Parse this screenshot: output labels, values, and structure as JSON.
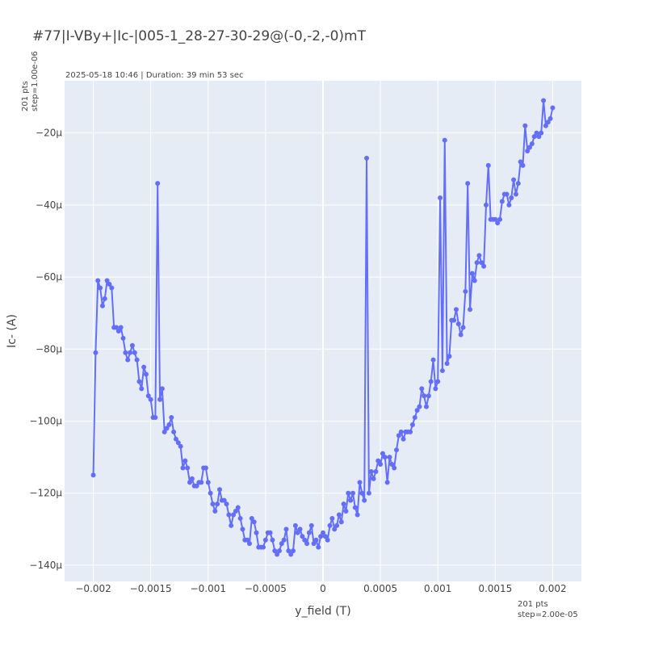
{
  "title": "#77|I-VBy+|Ic-|005-1_28-27-30-29@(-0,-2,-0)mT",
  "subtitle": "2025-05-18 10:46 | Duration: 39 min 53 sec",
  "y_note": [
    "201 pts",
    "step=1.00e-06"
  ],
  "x_note": [
    "201 pts",
    "step=2.00e-05"
  ],
  "colors": {
    "line": "#636efa",
    "plot_bg": "#e5ecf6",
    "grid": "#ffffff",
    "text": "#444444"
  },
  "chart_data": {
    "type": "line",
    "xlabel": "y_field (T)",
    "ylabel": "Ic- (A)",
    "xlim": [
      -0.00225,
      0.00225
    ],
    "ylim": [
      -0.0001445,
      -5.5e-06
    ],
    "x_ticks": [
      -0.002,
      -0.0015,
      -0.001,
      -0.0005,
      0,
      0.0005,
      0.001,
      0.0015,
      0.002
    ],
    "x_tick_labels": [
      "−0.002",
      "−0.0015",
      "−0.001",
      "−0.0005",
      "0",
      "0.0005",
      "0.001",
      "0.0015",
      "0.002"
    ],
    "y_ticks": [
      -0.00014,
      -0.00012,
      -0.0001,
      -8e-05,
      -6e-05,
      -4e-05,
      -2e-05
    ],
    "y_tick_labels": [
      "−140μ",
      "−120μ",
      "−100μ",
      "−80μ",
      "−60μ",
      "−40μ",
      "−20μ"
    ],
    "grid": true,
    "series": [
      {
        "x_start": -0.002,
        "x_step": 2e-05,
        "values": [
          -0.000115,
          -8.1e-05,
          -6.1e-05,
          -6.3e-05,
          -6.8e-05,
          -6.6e-05,
          -6.1e-05,
          -6.2e-05,
          -6.3e-05,
          -7.4e-05,
          -7.4e-05,
          -7.5e-05,
          -7.4e-05,
          -7.7e-05,
          -8.1e-05,
          -8.3e-05,
          -8.1e-05,
          -7.9e-05,
          -8.1e-05,
          -8.3e-05,
          -8.9e-05,
          -9.1e-05,
          -8.5e-05,
          -8.7e-05,
          -9.3e-05,
          -9.4e-05,
          -9.9e-05,
          -9.9e-05,
          -3.4e-05,
          -9.4e-05,
          -9.1e-05,
          -0.000103,
          -0.000102,
          -0.000101,
          -9.9e-05,
          -0.000103,
          -0.000105,
          -0.000106,
          -0.000107,
          -0.000113,
          -0.000111,
          -0.000113,
          -0.000117,
          -0.000116,
          -0.000118,
          -0.000118,
          -0.000117,
          -0.000117,
          -0.000113,
          -0.000113,
          -0.000117,
          -0.00012,
          -0.000123,
          -0.000125,
          -0.000123,
          -0.000119,
          -0.000122,
          -0.000122,
          -0.000123,
          -0.000126,
          -0.000129,
          -0.000126,
          -0.000125,
          -0.000124,
          -0.000127,
          -0.00013,
          -0.000133,
          -0.000133,
          -0.000134,
          -0.000127,
          -0.000128,
          -0.000131,
          -0.000135,
          -0.000135,
          -0.000135,
          -0.000133,
          -0.000131,
          -0.000131,
          -0.000133,
          -0.000136,
          -0.000137,
          -0.000136,
          -0.000134,
          -0.000133,
          -0.00013,
          -0.000136,
          -0.000137,
          -0.000136,
          -0.000129,
          -0.000131,
          -0.00013,
          -0.000132,
          -0.000133,
          -0.000134,
          -0.000131,
          -0.000129,
          -0.000134,
          -0.000133,
          -0.000135,
          -0.000132,
          -0.000131,
          -0.000132,
          -0.000133,
          -0.000129,
          -0.000127,
          -0.00013,
          -0.000129,
          -0.000126,
          -0.000128,
          -0.000123,
          -0.000125,
          -0.00012,
          -0.000122,
          -0.00012,
          -0.000124,
          -0.000126,
          -0.000117,
          -0.00012,
          -0.000122,
          -2.7e-05,
          -0.00012,
          -0.000114,
          -0.000116,
          -0.000114,
          -0.000111,
          -0.000112,
          -0.000109,
          -0.00011,
          -0.000117,
          -0.00011,
          -0.000112,
          -0.000113,
          -0.000108,
          -0.000104,
          -0.000103,
          -0.000105,
          -0.000103,
          -0.000103,
          -0.000103,
          -0.000101,
          -9.9e-05,
          -9.7e-05,
          -9.6e-05,
          -9.1e-05,
          -9.3e-05,
          -9.6e-05,
          -9.3e-05,
          -8.9e-05,
          -8.3e-05,
          -9.1e-05,
          -8.9e-05,
          -3.8e-05,
          -8.6e-05,
          -2.2e-05,
          -8.4e-05,
          -8.2e-05,
          -7.2e-05,
          -7.2e-05,
          -6.9e-05,
          -7.3e-05,
          -7.6e-05,
          -7.4e-05,
          -6.4e-05,
          -3.4e-05,
          -6.9e-05,
          -5.9e-05,
          -6.1e-05,
          -5.6e-05,
          -5.4e-05,
          -5.6e-05,
          -5.7e-05,
          -4e-05,
          -2.9e-05,
          -4.4e-05,
          -4.4e-05,
          -4.4e-05,
          -4.5e-05,
          -4.4e-05,
          -3.9e-05,
          -3.7e-05,
          -3.7e-05,
          -4e-05,
          -3.8e-05,
          -3.3e-05,
          -3.7e-05,
          -3.4e-05,
          -2.8e-05,
          -2.9e-05,
          -1.8e-05,
          -2.5e-05,
          -2.4e-05,
          -2.3e-05,
          -2.1e-05,
          -2e-05,
          -2.1e-05,
          -2e-05,
          -1.1e-05,
          -1.8e-05,
          -1.7e-05,
          -1.6e-05,
          -1.3e-05
        ]
      }
    ]
  }
}
